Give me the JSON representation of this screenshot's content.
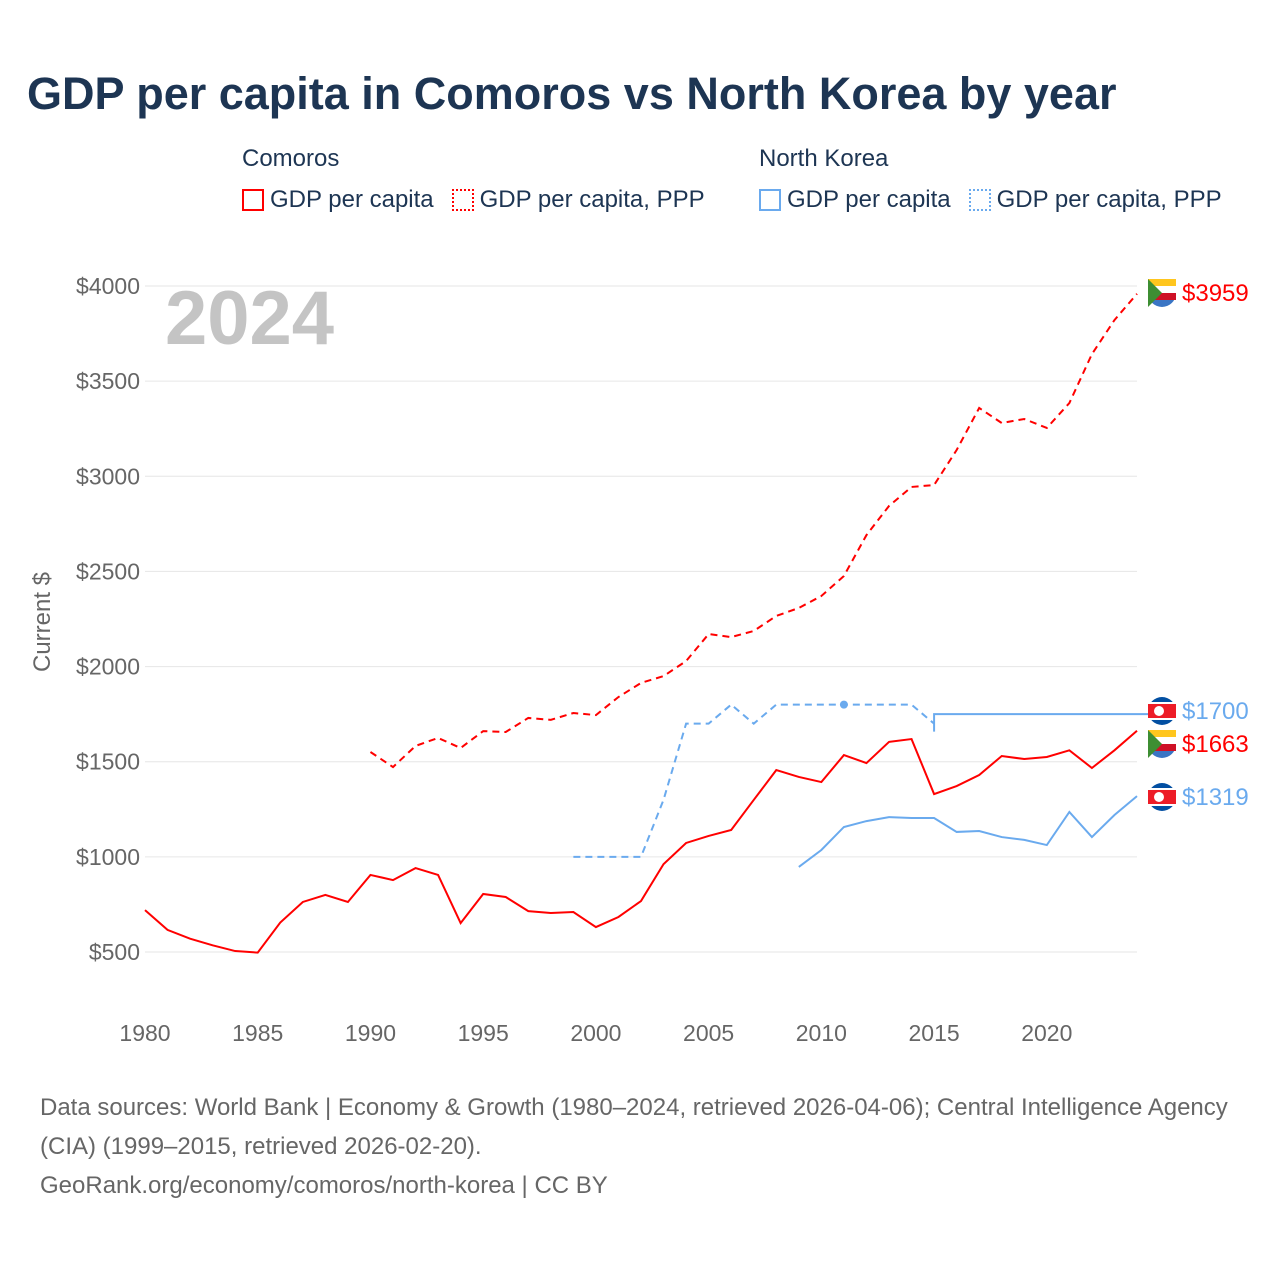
{
  "title": "GDP per capita in Comoros vs North Korea by year",
  "legend": {
    "groups": [
      {
        "name": "Comoros",
        "items": [
          "GDP per capita",
          "GDP per capita, PPP"
        ],
        "color": "#ff0000"
      },
      {
        "name": "North Korea",
        "items": [
          "GDP per capita",
          "GDP per capita, PPP"
        ],
        "color": "#6aaaee"
      }
    ]
  },
  "year_watermark": "2024",
  "sources": {
    "line1": "Data sources: World Bank | Economy & Growth (1980–2024, retrieved 2026-04-06); Central Intelligence Agency (CIA) (1999–2015, retrieved 2026-02-20).",
    "line2": "GeoRank.org/economy/comoros/north-korea | CC BY"
  },
  "chart_data": {
    "type": "line",
    "ylabel": "Current $",
    "xlabel": "",
    "xlim": [
      1980,
      2024
    ],
    "ylim": [
      500,
      4000
    ],
    "xticks": [
      1980,
      1985,
      1990,
      1995,
      2000,
      2005,
      2010,
      2015,
      2020
    ],
    "xtick_labels": [
      "1980",
      "1985",
      "1990",
      "1995",
      "2000",
      "2005",
      "2010",
      "2015",
      "2020"
    ],
    "yticks": [
      500,
      1000,
      1500,
      2000,
      2500,
      3000,
      3500,
      4000
    ],
    "ytick_labels": [
      "$500",
      "$1000",
      "$1500",
      "$2000",
      "$2500",
      "$3000",
      "$3500",
      "$4000"
    ],
    "grid": true,
    "series": [
      {
        "name": "Comoros GDP per capita",
        "color": "#ff0000",
        "style": "solid",
        "end_label": "$1663",
        "x": [
          1980,
          1981,
          1982,
          1983,
          1984,
          1985,
          1986,
          1987,
          1988,
          1989,
          1990,
          1991,
          1992,
          1993,
          1994,
          1995,
          1996,
          1997,
          1998,
          1999,
          2000,
          2001,
          2002,
          2003,
          2004,
          2005,
          2006,
          2007,
          2008,
          2009,
          2010,
          2011,
          2012,
          2013,
          2014,
          2015,
          2016,
          2017,
          2018,
          2019,
          2020,
          2021,
          2022,
          2023,
          2024
        ],
        "values": [
          720,
          616,
          570,
          535,
          505,
          497,
          655,
          763,
          800,
          763,
          905,
          878,
          941,
          905,
          652,
          805,
          789,
          715,
          705,
          710,
          631,
          684,
          768,
          962,
          1073,
          1110,
          1141,
          1299,
          1456,
          1420,
          1393,
          1535,
          1493,
          1604,
          1619,
          1330,
          1372,
          1430,
          1530,
          1514,
          1525,
          1560,
          1467,
          1560,
          1663
        ]
      },
      {
        "name": "Comoros GDP per capita, PPP",
        "color": "#ff0000",
        "style": "dashed",
        "end_label": "$3959",
        "x": [
          1990,
          1991,
          1992,
          1993,
          1994,
          1995,
          1996,
          1997,
          1998,
          1999,
          2000,
          2001,
          2002,
          2003,
          2004,
          2005,
          2006,
          2007,
          2008,
          2009,
          2010,
          2011,
          2012,
          2013,
          2014,
          2015,
          2016,
          2017,
          2018,
          2019,
          2020,
          2021,
          2022,
          2023,
          2024
        ],
        "values": [
          1551,
          1472,
          1583,
          1625,
          1572,
          1661,
          1656,
          1730,
          1720,
          1756,
          1745,
          1840,
          1914,
          1950,
          2029,
          2171,
          2155,
          2187,
          2266,
          2308,
          2371,
          2476,
          2691,
          2844,
          2944,
          2954,
          3138,
          3359,
          3280,
          3301,
          3254,
          3385,
          3642,
          3821,
          3959
        ]
      },
      {
        "name": "North Korea GDP per capita",
        "color": "#6aaaee",
        "style": "solid",
        "end_label": "$1319",
        "x": [
          2009,
          2010,
          2011,
          2012,
          2013,
          2014,
          2015,
          2016,
          2017,
          2018,
          2019,
          2020,
          2021,
          2022,
          2023,
          2024
        ],
        "values": [
          947,
          1036,
          1157,
          1188,
          1209,
          1204,
          1204,
          1131,
          1136,
          1104,
          1089,
          1062,
          1236,
          1104,
          1220,
          1319
        ]
      },
      {
        "name": "North Korea GDP per capita, PPP",
        "color": "#6aaaee",
        "style": "dashed",
        "end_label": "$1700",
        "x": [
          1999,
          2000,
          2001,
          2002,
          2003,
          2004,
          2005,
          2006,
          2007,
          2008,
          2009,
          2010,
          2011,
          2012,
          2013,
          2014,
          2015
        ],
        "values": [
          1000,
          1000,
          1000,
          1000,
          1300,
          1700,
          1700,
          1800,
          1700,
          1800,
          1800,
          1800,
          1800,
          1800,
          1800,
          1800,
          1700
        ]
      }
    ]
  }
}
